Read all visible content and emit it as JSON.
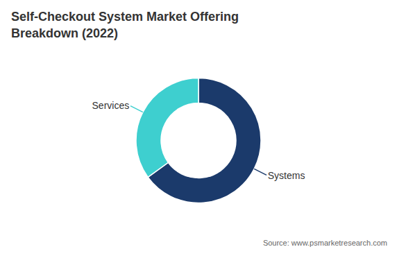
{
  "chart_data": {
    "type": "pie",
    "title": "Self-Checkout System Market Offering\nBreakdown (2022)",
    "categories": [
      "Systems",
      "Services"
    ],
    "values": [
      65,
      35
    ],
    "colors": [
      "#1b3a6b",
      "#3ecfcf"
    ],
    "annotations": [
      "Source: www.psmarketresearch.com"
    ]
  }
}
